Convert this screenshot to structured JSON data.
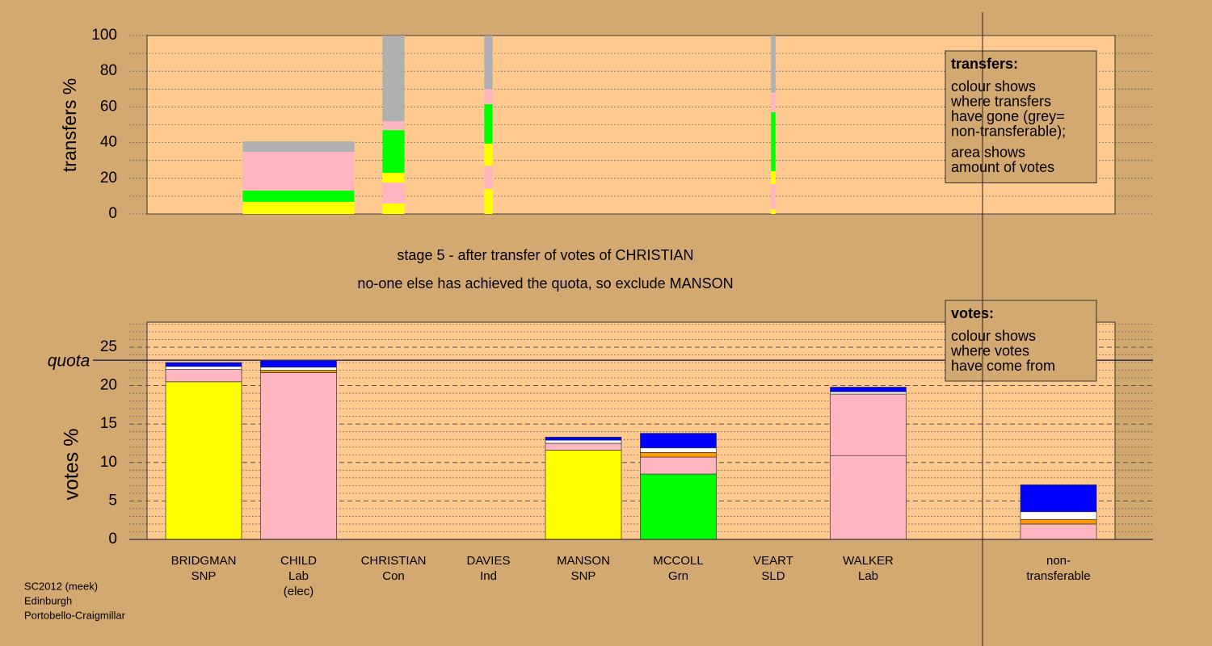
{
  "chart_data": [
    {
      "type": "bar",
      "stacked": true,
      "ylabel": "transfers %",
      "ylim": [
        0,
        100
      ],
      "yticks": [
        0,
        20,
        40,
        60,
        80,
        100
      ],
      "minor_yticks": [
        10,
        30,
        50,
        70,
        90
      ],
      "amounts": [
        null,
        1.47,
        0.29,
        0.11,
        null,
        null,
        0.06,
        null,
        null
      ],
      "series": [
        {
          "color": "#ffff00",
          "values": [
            null,
            6.8,
            5.9,
            14,
            null,
            null,
            2.7,
            null,
            null
          ]
        },
        {
          "color": "#ffb6c1",
          "values": [
            null,
            0,
            11.7,
            13,
            null,
            null,
            14,
            null,
            null
          ]
        },
        {
          "color": "#ffff00",
          "values": [
            null,
            0,
            5.5,
            12.4,
            null,
            null,
            7.3,
            null,
            null
          ]
        },
        {
          "color": "#00ff00",
          "values": [
            null,
            6.3,
            23.9,
            22.1,
            null,
            null,
            33,
            null,
            null
          ]
        },
        {
          "color": "#ffb6c1",
          "values": [
            null,
            21.7,
            5,
            8.5,
            null,
            null,
            11,
            null,
            null
          ]
        },
        {
          "color": "#b0b0b0",
          "values": [
            null,
            5.9,
            48,
            30,
            null,
            null,
            32,
            null,
            null
          ]
        }
      ],
      "legend_box": {
        "title": "transfers:",
        "paragraphs": [
          [
            "colour shows",
            "where transfers",
            "have gone (grey=",
            "non-transferable);"
          ],
          [
            "area shows",
            "amount of votes"
          ]
        ]
      }
    },
    {
      "type": "bar",
      "stacked": true,
      "ylabel": "votes %",
      "categories": [
        [
          "BRIDGMAN",
          "SNP"
        ],
        [
          "CHILD",
          "Lab",
          "(elec)"
        ],
        [
          "CHRISTIAN",
          "Con"
        ],
        [
          "DAVIES",
          "Ind"
        ],
        [
          "MANSON",
          "SNP"
        ],
        [
          "MCCOLL",
          "Grn"
        ],
        [
          "VEART",
          "SLD"
        ],
        [
          "WALKER",
          "Lab"
        ],
        [
          "non-",
          "transferable"
        ]
      ],
      "ylim": [
        0,
        28.25
      ],
      "yticks": [
        0,
        5,
        10,
        15,
        20,
        25
      ],
      "minor_yticks": [
        1,
        2,
        3,
        4,
        6,
        7,
        8,
        9,
        11,
        12,
        13,
        14,
        16,
        17,
        18,
        19,
        21,
        22,
        23,
        24,
        26,
        27,
        28
      ],
      "quota": {
        "label": "quota",
        "value": 23.3
      },
      "series": [
        {
          "color": "#ffff00",
          "values": [
            20.5,
            0,
            0,
            0,
            11.6,
            0,
            0,
            0,
            0
          ]
        },
        {
          "color": "#00ff00",
          "values": [
            0,
            0,
            0,
            0,
            0,
            8.5,
            0,
            0,
            0
          ]
        },
        {
          "color": "#ffb6c1",
          "values": [
            0,
            21.7,
            0,
            0,
            0,
            0,
            0,
            10.9,
            0
          ]
        },
        {
          "color": "#ffb6c1",
          "values": [
            1.6,
            0,
            0,
            0,
            0.9,
            2.2,
            0,
            8.0,
            2.0
          ]
        },
        {
          "color": "#ff9900",
          "values": [
            0,
            0.3,
            0,
            0,
            0,
            0.6,
            0,
            0,
            0.6
          ]
        },
        {
          "color": "#ffffff",
          "values": [
            0.4,
            0.4,
            0,
            0,
            0.4,
            0.6,
            0,
            0.3,
            1.0
          ]
        },
        {
          "color": "#0000ff",
          "values": [
            0.5,
            0.9,
            0,
            0,
            0.4,
            1.9,
            0,
            0.6,
            3.5
          ]
        }
      ],
      "legend_box": {
        "title": "votes:",
        "paragraphs": [
          [
            "colour shows",
            "where votes",
            "have come from"
          ]
        ]
      }
    }
  ],
  "headline": [
    "stage 5 - after transfer of votes of CHRISTIAN",
    "no-one else has achieved the quota, so exclude MANSON"
  ],
  "footer": [
    "SC2012 (meek)",
    "Edinburgh",
    "Portobello-Craigmillar"
  ]
}
